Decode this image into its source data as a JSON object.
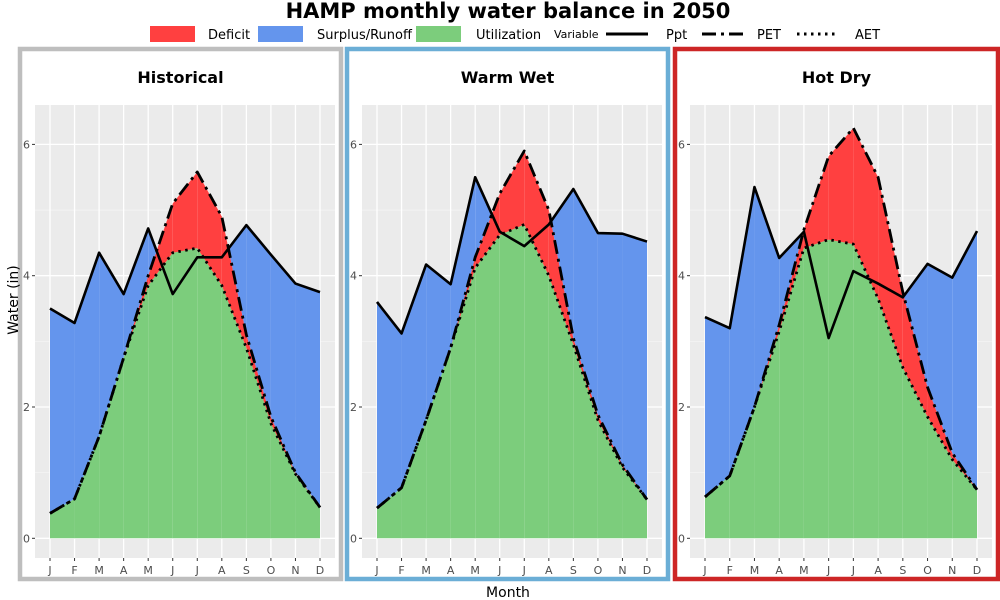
{
  "title": "HAMP monthly water balance in 2050",
  "legend": {
    "fill_items": [
      {
        "label": "Deficit",
        "color": "#FF4040"
      },
      {
        "label": "Surplus/Runoff",
        "color": "#6495ED"
      },
      {
        "label": "Utilization",
        "color": "#7CCD7C"
      }
    ],
    "variable_title": "Variable",
    "line_items": [
      {
        "label": "Ppt",
        "style": "solid"
      },
      {
        "label": "PET",
        "style": "dashdot"
      },
      {
        "label": "AET",
        "style": "dotted"
      }
    ]
  },
  "axis": {
    "xlabel": "Month",
    "ylabel": "Water (in)"
  },
  "chart_data": {
    "type": "area",
    "categories": [
      "J",
      "F",
      "M",
      "A",
      "M",
      "J",
      "J",
      "A",
      "S",
      "O",
      "N",
      "D"
    ],
    "y_ticks": [
      "0",
      "2",
      "4",
      "6"
    ],
    "ylim": [
      -0.3,
      6.6
    ],
    "grid": true,
    "legend_position": "top",
    "panels": [
      {
        "title": "Historical",
        "border_color": "#BEBEBE",
        "series": [
          {
            "name": "Ppt",
            "values": [
              3.5,
              3.28,
              4.35,
              3.72,
              4.72,
              3.72,
              4.28,
              4.28,
              4.77,
              4.32,
              3.88,
              3.75
            ]
          },
          {
            "name": "PET",
            "values": [
              0.38,
              0.6,
              1.55,
              2.75,
              4.0,
              5.1,
              5.58,
              4.9,
              3.1,
              1.85,
              1.0,
              0.47
            ]
          },
          {
            "name": "AET",
            "values": [
              0.38,
              0.6,
              1.55,
              2.75,
              3.85,
              4.35,
              4.42,
              3.85,
              2.9,
              1.75,
              0.98,
              0.47
            ]
          }
        ]
      },
      {
        "title": "Warm Wet",
        "border_color": "#6BAED6",
        "series": [
          {
            "name": "Ppt",
            "values": [
              3.6,
              3.12,
              4.17,
              3.87,
              5.5,
              4.67,
              4.45,
              4.78,
              5.32,
              4.65,
              4.64,
              4.52
            ]
          },
          {
            "name": "PET",
            "values": [
              0.46,
              0.77,
              1.8,
              2.9,
              4.28,
              5.25,
              5.9,
              5.0,
              3.05,
              1.88,
              1.12,
              0.59
            ]
          },
          {
            "name": "AET",
            "values": [
              0.46,
              0.77,
              1.8,
              2.9,
              4.12,
              4.62,
              4.78,
              4.0,
              2.95,
              1.8,
              1.08,
              0.59
            ]
          }
        ]
      },
      {
        "title": "Hot Dry",
        "border_color": "#CD2626",
        "series": [
          {
            "name": "Ppt",
            "values": [
              3.37,
              3.2,
              5.35,
              4.27,
              4.67,
              3.05,
              4.07,
              3.88,
              3.67,
              4.18,
              3.97,
              4.68
            ]
          },
          {
            "name": "PET",
            "values": [
              0.63,
              0.95,
              2.0,
              3.25,
              4.7,
              5.82,
              6.25,
              5.5,
              3.75,
              2.3,
              1.3,
              0.74
            ]
          },
          {
            "name": "AET",
            "values": [
              0.63,
              0.95,
              2.0,
              3.15,
              4.42,
              4.55,
              4.48,
              3.65,
              2.6,
              1.85,
              1.2,
              0.74
            ]
          }
        ]
      }
    ]
  }
}
